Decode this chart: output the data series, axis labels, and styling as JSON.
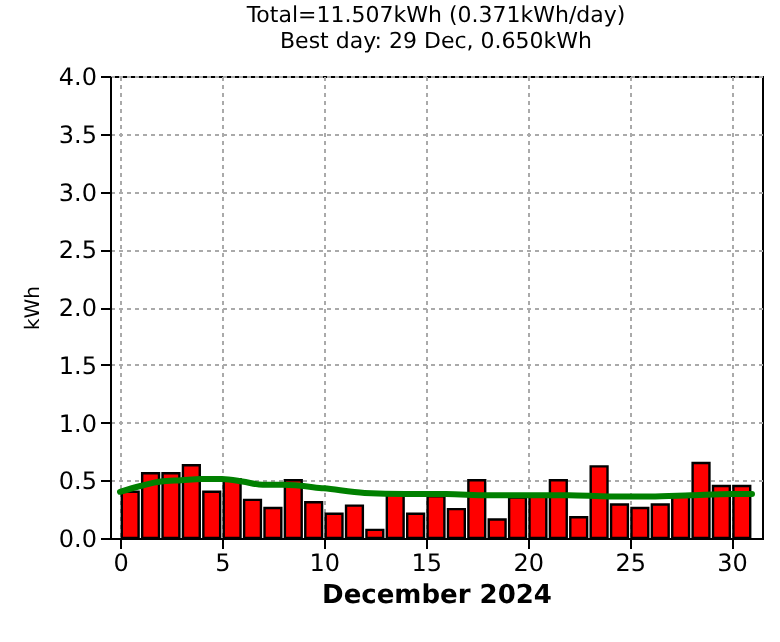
{
  "chart_data": {
    "type": "bar",
    "title": "Total=11.507kWh (0.371kWh/day)",
    "subtitle": "Best day: 29 Dec, 0.650kWh",
    "xlabel": "December 2024",
    "ylabel": "kWh",
    "xlim": [
      0,
      31
    ],
    "xticks": [
      0,
      5,
      10,
      15,
      20,
      25,
      30
    ],
    "ylim": [
      0,
      4
    ],
    "yticks": [
      {
        "value": 0,
        "label": "0.0"
      },
      {
        "value": 0.5,
        "label": "0.5"
      },
      {
        "value": 1,
        "label": "1.0"
      },
      {
        "value": 1.5,
        "label": "1.5"
      },
      {
        "value": 2,
        "label": "2.0"
      },
      {
        "value": 2.5,
        "label": "2.5"
      },
      {
        "value": 3,
        "label": "3.0"
      },
      {
        "value": 3.5,
        "label": "3.5"
      },
      {
        "value": 4,
        "label": "4.0"
      }
    ],
    "grid": true,
    "series": [
      {
        "color": "#ff0000",
        "x": [
          0.5,
          1.5,
          2.5,
          3.5,
          4.5,
          5.5,
          6.5,
          7.5,
          8.5,
          9.5,
          10.5,
          11.5,
          12.5,
          13.5,
          14.5,
          15.5,
          16.5,
          17.5,
          18.5,
          19.5,
          20.5,
          21.5,
          22.5,
          23.5,
          24.5,
          25.5,
          26.5,
          27.5,
          28.5,
          29.5,
          30.5
        ],
        "values": [
          0.4,
          0.56,
          0.56,
          0.63,
          0.4,
          0.51,
          0.33,
          0.26,
          0.5,
          0.31,
          0.21,
          0.28,
          0.07,
          0.38,
          0.21,
          0.36,
          0.25,
          0.5,
          0.16,
          0.35,
          0.36,
          0.5,
          0.18,
          0.62,
          0.29,
          0.26,
          0.29,
          0.36,
          0.65,
          0.45,
          0.45
        ]
      },
      {
        "type": "line",
        "color": "#008000",
        "x": [
          0,
          1,
          2,
          3,
          4,
          5,
          6,
          7,
          8,
          10,
          12,
          14,
          16,
          18,
          20,
          22,
          24,
          26,
          28,
          30,
          31
        ],
        "values": [
          0.4,
          0.45,
          0.49,
          0.5,
          0.51,
          0.51,
          0.49,
          0.46,
          0.46,
          0.43,
          0.39,
          0.38,
          0.38,
          0.37,
          0.37,
          0.37,
          0.36,
          0.36,
          0.37,
          0.38,
          0.38
        ]
      }
    ]
  }
}
